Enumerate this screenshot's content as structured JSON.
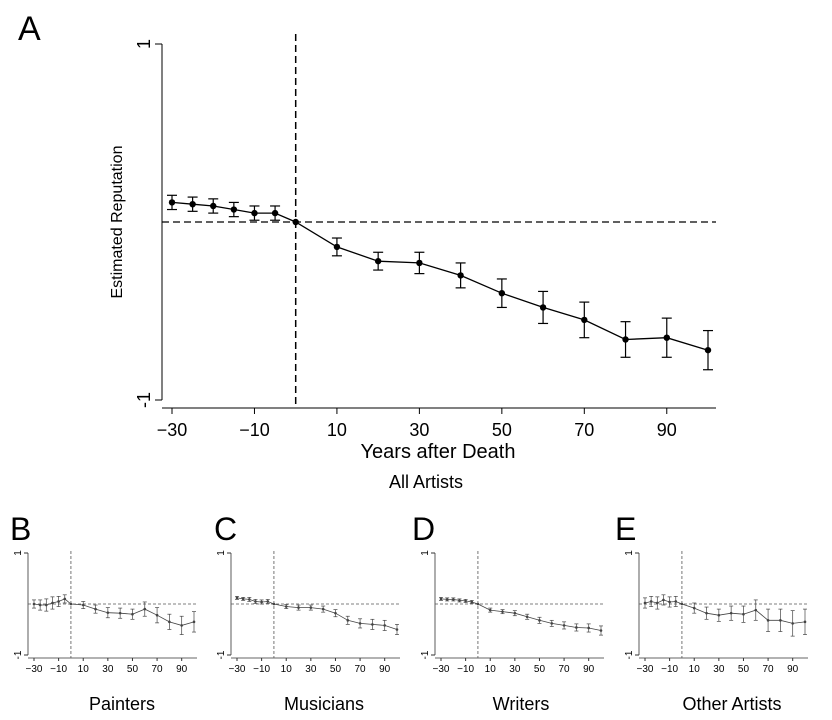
{
  "panels": [
    {
      "letter": "A",
      "caption": "All Artists",
      "xlabel": "Years after Death",
      "ylabel": "Estimated Reputation"
    },
    {
      "letter": "B",
      "caption": "Painters"
    },
    {
      "letter": "C",
      "caption": "Musicians"
    },
    {
      "letter": "D",
      "caption": "Writers"
    },
    {
      "letter": "E",
      "caption": "Other Artists"
    }
  ],
  "chart_data": [
    {
      "type": "line",
      "title": "",
      "xlabel": "Years after Death",
      "ylabel": "Estimated Reputation",
      "xlim": [
        -30,
        100
      ],
      "ylim": [
        -1,
        1
      ],
      "x_ticks": [
        -30,
        -10,
        10,
        30,
        50,
        70,
        90
      ],
      "y_ticks": [
        1,
        -1
      ],
      "reference_x": 0,
      "reference_y": 0.0,
      "series": [
        {
          "x": [
            -30,
            -25,
            -20,
            -15,
            -10,
            -5,
            0,
            10,
            20,
            30,
            40,
            50,
            60,
            70,
            80,
            90,
            100
          ],
          "y": [
            0.11,
            0.1,
            0.09,
            0.07,
            0.05,
            0.05,
            0.0,
            -0.14,
            -0.22,
            -0.23,
            -0.3,
            -0.4,
            -0.48,
            -0.55,
            -0.66,
            -0.65,
            -0.72
          ],
          "error": [
            0.04,
            0.04,
            0.04,
            0.04,
            0.04,
            0.04,
            0.0,
            0.05,
            0.05,
            0.06,
            0.07,
            0.08,
            0.09,
            0.1,
            0.1,
            0.11,
            0.11
          ]
        }
      ],
      "grid": false,
      "legend": "none"
    },
    {
      "type": "line",
      "title": "Painters",
      "xlim": [
        -30,
        100
      ],
      "ylim": [
        -1,
        1
      ],
      "x_ticks": [
        -30,
        -10,
        10,
        30,
        50,
        70,
        90
      ],
      "y_ticks": [
        1,
        -1
      ],
      "reference_x": 0,
      "reference_y": 0.0,
      "series": [
        {
          "x": [
            -30,
            -25,
            -20,
            -15,
            -10,
            -5,
            0,
            10,
            20,
            30,
            40,
            50,
            60,
            70,
            80,
            90,
            100
          ],
          "y": [
            0.0,
            -0.02,
            -0.02,
            0.02,
            0.05,
            0.1,
            0.0,
            -0.02,
            -0.1,
            -0.17,
            -0.18,
            -0.2,
            -0.1,
            -0.22,
            -0.35,
            -0.42,
            -0.35
          ],
          "error": [
            0.08,
            0.1,
            0.12,
            0.12,
            0.1,
            0.08,
            0.0,
            0.07,
            0.08,
            0.1,
            0.1,
            0.1,
            0.14,
            0.15,
            0.15,
            0.18,
            0.2
          ]
        }
      ]
    },
    {
      "type": "line",
      "title": "Musicians",
      "xlim": [
        -30,
        100
      ],
      "ylim": [
        -1,
        1
      ],
      "x_ticks": [
        -30,
        -10,
        10,
        30,
        50,
        70,
        90
      ],
      "y_ticks": [
        1,
        -1
      ],
      "reference_x": 0,
      "reference_y": 0.0,
      "series": [
        {
          "x": [
            -30,
            -25,
            -20,
            -15,
            -10,
            -5,
            0,
            10,
            20,
            30,
            40,
            50,
            60,
            70,
            80,
            90,
            100
          ],
          "y": [
            0.12,
            0.1,
            0.09,
            0.05,
            0.04,
            0.05,
            0.0,
            -0.05,
            -0.07,
            -0.07,
            -0.1,
            -0.18,
            -0.32,
            -0.38,
            -0.4,
            -0.42,
            -0.5
          ],
          "error": [
            0.03,
            0.03,
            0.04,
            0.04,
            0.04,
            0.04,
            0.0,
            0.04,
            0.05,
            0.05,
            0.06,
            0.07,
            0.08,
            0.09,
            0.1,
            0.1,
            0.1
          ]
        }
      ]
    },
    {
      "type": "line",
      "title": "Writers",
      "xlim": [
        -30,
        100
      ],
      "ylim": [
        -1,
        1
      ],
      "x_ticks": [
        -30,
        -10,
        10,
        30,
        50,
        70,
        90
      ],
      "y_ticks": [
        1,
        -1
      ],
      "reference_x": 0,
      "reference_y": 0.0,
      "series": [
        {
          "x": [
            -30,
            -25,
            -20,
            -15,
            -10,
            -5,
            0,
            10,
            20,
            30,
            40,
            50,
            60,
            70,
            80,
            90,
            100
          ],
          "y": [
            0.1,
            0.09,
            0.09,
            0.07,
            0.06,
            0.04,
            0.0,
            -0.12,
            -0.15,
            -0.18,
            -0.25,
            -0.32,
            -0.38,
            -0.42,
            -0.46,
            -0.47,
            -0.52
          ],
          "error": [
            0.03,
            0.03,
            0.03,
            0.03,
            0.03,
            0.03,
            0.0,
            0.04,
            0.04,
            0.05,
            0.05,
            0.06,
            0.06,
            0.07,
            0.07,
            0.08,
            0.09
          ]
        }
      ]
    },
    {
      "type": "line",
      "title": "Other Artists",
      "xlim": [
        -30,
        100
      ],
      "ylim": [
        -1,
        1
      ],
      "x_ticks": [
        -30,
        -10,
        10,
        30,
        50,
        70,
        90
      ],
      "y_ticks": [
        1,
        -1
      ],
      "reference_x": 0,
      "reference_y": 0.0,
      "series": [
        {
          "x": [
            -30,
            -25,
            -20,
            -15,
            -10,
            -5,
            0,
            10,
            20,
            30,
            40,
            50,
            60,
            70,
            80,
            90,
            100
          ],
          "y": [
            0.02,
            0.05,
            0.02,
            0.08,
            0.04,
            0.05,
            0.0,
            -0.08,
            -0.18,
            -0.22,
            -0.18,
            -0.2,
            -0.12,
            -0.32,
            -0.32,
            -0.38,
            -0.35
          ],
          "error": [
            0.1,
            0.1,
            0.12,
            0.1,
            0.1,
            0.1,
            0.0,
            0.1,
            0.12,
            0.12,
            0.14,
            0.16,
            0.2,
            0.22,
            0.22,
            0.25,
            0.25
          ]
        }
      ]
    }
  ]
}
